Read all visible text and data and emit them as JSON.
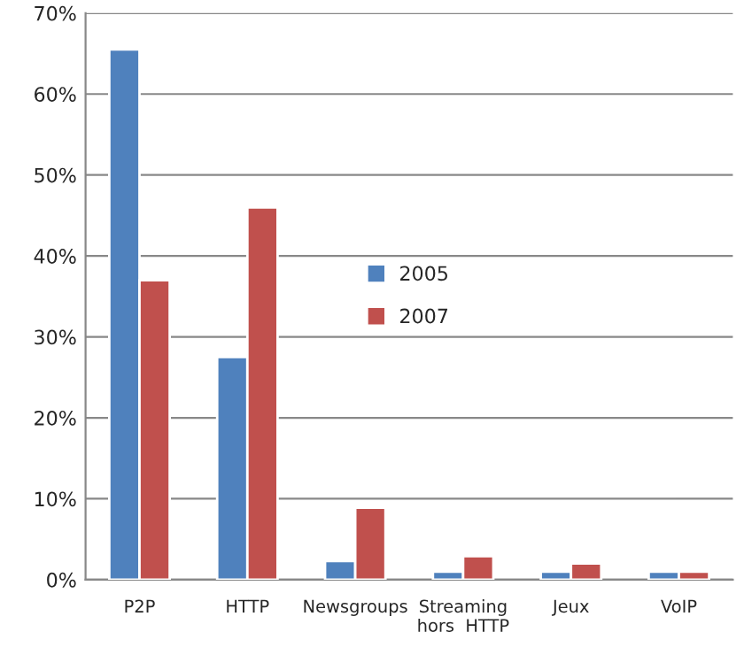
{
  "chart_data": {
    "type": "bar",
    "categories": [
      "P2P",
      "HTTP",
      "Newsgroups",
      "Streaming\nhors  HTTP",
      "Jeux",
      "VoIP"
    ],
    "series": [
      {
        "name": "2005",
        "color": "#4f81bd",
        "values": [
          65.5,
          27.5,
          2.3,
          1.0,
          1.0,
          1.0
        ]
      },
      {
        "name": "2007",
        "color": "#c0504d",
        "values": [
          37.0,
          46.0,
          8.9,
          2.9,
          2.0,
          1.0
        ]
      }
    ],
    "ylim": [
      0,
      70
    ],
    "yticks": [
      {
        "value": 0,
        "label": "0%"
      },
      {
        "value": 10,
        "label": "10%"
      },
      {
        "value": 20,
        "label": "20%"
      },
      {
        "value": 30,
        "label": "30%"
      },
      {
        "value": 40,
        "label": "40%"
      },
      {
        "value": 50,
        "label": "50%"
      },
      {
        "value": 60,
        "label": "60%"
      },
      {
        "value": 70,
        "label": "70%"
      }
    ],
    "grid": "y",
    "legend": "center"
  }
}
